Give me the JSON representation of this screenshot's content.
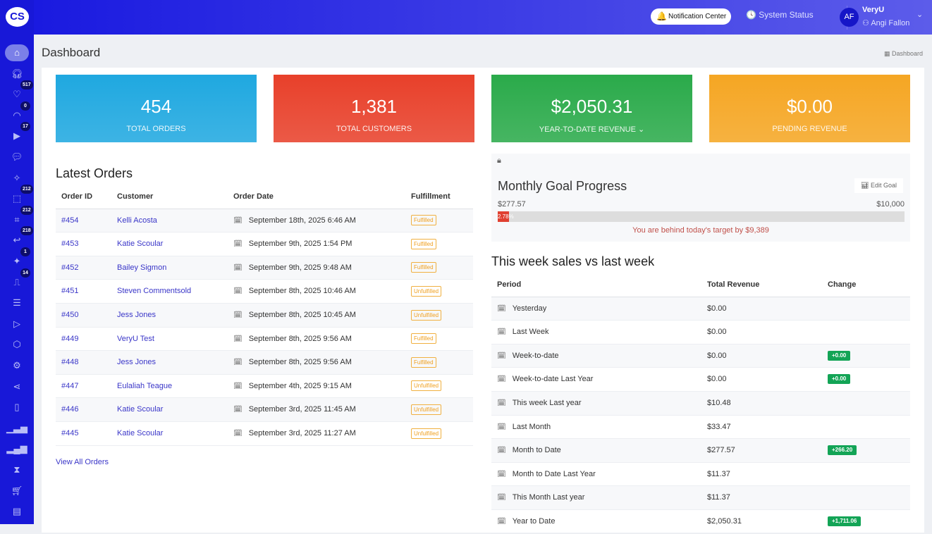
{
  "app": {
    "logo": "CS"
  },
  "sidebar": {
    "items": [
      {
        "icon": "home-icon",
        "badge": null
      },
      {
        "icon": "headset-icon",
        "badge": null
      },
      {
        "icon": "hand-heart-icon",
        "badge": "517"
      },
      {
        "icon": "rss-icon",
        "badge": "0"
      },
      {
        "icon": "play-icon",
        "badge": "17"
      },
      {
        "icon": "chat-icon",
        "badge": null
      },
      {
        "icon": "magic-wand-icon",
        "badge": null
      },
      {
        "icon": "box-icon",
        "badge": "212"
      },
      {
        "icon": "scan-icon",
        "badge": "212"
      },
      {
        "icon": "return-arrow-icon",
        "badge": "218"
      },
      {
        "icon": "party-icon",
        "badge": "1"
      },
      {
        "icon": "ticket-icon",
        "badge": "14"
      },
      {
        "icon": "user-list-icon",
        "badge": null
      },
      {
        "icon": "video-icon",
        "badge": null
      },
      {
        "icon": "package-icon",
        "badge": null
      },
      {
        "icon": "gear-icon",
        "badge": null
      },
      {
        "icon": "share-icon",
        "badge": null
      },
      {
        "icon": "mobile-icon",
        "badge": null
      },
      {
        "icon": "signal-icon",
        "badge": null
      },
      {
        "icon": "bar-chart-icon",
        "badge": null
      },
      {
        "icon": "hourglass-icon",
        "badge": null
      },
      {
        "icon": "cart-icon",
        "badge": null
      },
      {
        "icon": "list-icon",
        "badge": null
      }
    ]
  },
  "header": {
    "notification": "Notification Center",
    "system_status": "System Status",
    "avatar": "AF",
    "org": "VeryU",
    "user": "Angi Fallon"
  },
  "page": {
    "title": "Dashboard",
    "breadcrumb": "Dashboard"
  },
  "cards": [
    {
      "value": "454",
      "label": "TOTAL ORDERS",
      "color": "#1fa8e0"
    },
    {
      "value": "1,381",
      "label": "TOTAL CUSTOMERS",
      "color": "#e8402a"
    },
    {
      "value": "$2,050.31",
      "label": "YEAR-TO-DATE REVENUE",
      "color": "#2aaa4a",
      "dropdown": true
    },
    {
      "value": "$0.00",
      "label": "PENDING REVENUE",
      "color": "#f5a623"
    }
  ],
  "orders": {
    "title": "Latest Orders",
    "columns": [
      "Order ID",
      "Customer",
      "Order Date",
      "Fulfillment"
    ],
    "rows": [
      [
        "#454",
        "Kelli Acosta",
        "September 18th, 2025 6:46 AM",
        "Fulfilled"
      ],
      [
        "#453",
        "Katie Scoular",
        "September 9th, 2025 1:54 PM",
        "Fulfilled"
      ],
      [
        "#452",
        "Bailey Sigmon",
        "September 9th, 2025 9:48 AM",
        "Fulfilled"
      ],
      [
        "#451",
        "Steven Commentsold",
        "September 8th, 2025 10:46 AM",
        "Unfulfilled"
      ],
      [
        "#450",
        "Jess Jones",
        "September 8th, 2025 10:45 AM",
        "Unfulfilled"
      ],
      [
        "#449",
        "VeryU Test",
        "September 8th, 2025 9:56 AM",
        "Fulfilled"
      ],
      [
        "#448",
        "Jess Jones",
        "September 8th, 2025 9:56 AM",
        "Fulfilled"
      ],
      [
        "#447",
        "Eulaliah Teague",
        "September 4th, 2025 9:15 AM",
        "Unfulfilled"
      ],
      [
        "#446",
        "Katie Scoular",
        "September 3rd, 2025 11:45 AM",
        "Unfulfilled"
      ],
      [
        "#445",
        "Katie Scoular",
        "September 3rd, 2025 11:27 AM",
        "Unfulfilled"
      ]
    ],
    "view_all": "View All Orders"
  },
  "goal": {
    "title": "Monthly Goal Progress",
    "edit": "Edit Goal",
    "current": "$277.57",
    "target": "$10,000",
    "percent": 2.78,
    "percent_label": "2.78%",
    "message": "You are behind today's target by $9,389"
  },
  "weekly": {
    "title": "This week sales vs last week",
    "columns": [
      "Period",
      "Total Revenue",
      "Change"
    ],
    "rows": [
      [
        "Yesterday",
        "$0.00",
        ""
      ],
      [
        "Last Week",
        "$0.00",
        ""
      ],
      [
        "Week-to-date",
        "$0.00",
        "+0.00"
      ],
      [
        "Week-to-date Last Year",
        "$0.00",
        "+0.00"
      ],
      [
        "This week Last year",
        "$10.48",
        ""
      ],
      [
        "Last Month",
        "$33.47",
        ""
      ],
      [
        "Month to Date",
        "$277.57",
        "+266.20"
      ],
      [
        "Month to Date Last Year",
        "$11.37",
        ""
      ],
      [
        "This Month Last year",
        "$11.37",
        ""
      ],
      [
        "Year to Date",
        "$2,050.31",
        "+1,711.06"
      ]
    ]
  }
}
